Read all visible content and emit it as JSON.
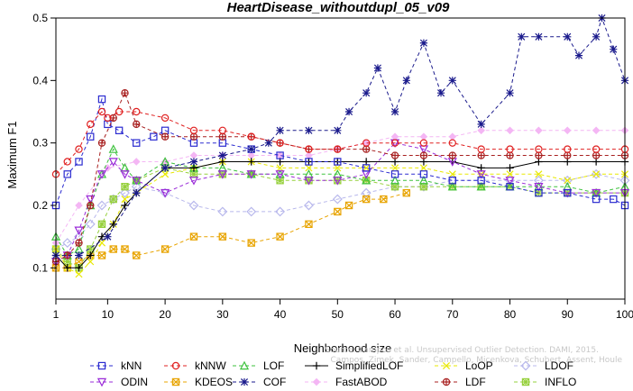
{
  "chart_data": {
    "type": "line",
    "title": "HeartDisease_withoutdupl_05_v09",
    "xlabel": "Neighborhood size",
    "ylabel": "Maximum F1",
    "xlim": [
      1,
      100
    ],
    "ylim": [
      0.05,
      0.5
    ],
    "xticks": [
      1,
      10,
      20,
      30,
      40,
      50,
      60,
      70,
      80,
      90,
      100
    ],
    "yticks": [
      0.1,
      0.2,
      0.3,
      0.4,
      0.5
    ],
    "grid": false,
    "legend_position": "bottom",
    "watermark": [
      "Source: Campos et al. Unsupervised Outlier Detection. DAMI, 2015.",
      "Campos, Zimek, Sander, Campello, Micenkova, Schubert, Assent, Houle"
    ],
    "series": [
      {
        "name": "kNN",
        "color": "#2b2bd0",
        "marker": "square",
        "dash": "4,3",
        "x": [
          1,
          3,
          5,
          7,
          9,
          10,
          12,
          15,
          18,
          20,
          25,
          30,
          35,
          40,
          45,
          50,
          55,
          60,
          65,
          70,
          75,
          80,
          85,
          90,
          95,
          98,
          100
        ],
        "y": [
          0.2,
          0.25,
          0.27,
          0.31,
          0.37,
          0.33,
          0.32,
          0.3,
          0.31,
          0.32,
          0.3,
          0.3,
          0.29,
          0.28,
          0.27,
          0.27,
          0.26,
          0.25,
          0.25,
          0.24,
          0.24,
          0.23,
          0.22,
          0.22,
          0.21,
          0.21,
          0.2
        ]
      },
      {
        "name": "kNNW",
        "color": "#e02020",
        "marker": "circle",
        "dash": "4,3",
        "x": [
          1,
          3,
          5,
          7,
          9,
          10,
          12,
          15,
          20,
          25,
          30,
          35,
          40,
          45,
          50,
          55,
          60,
          65,
          70,
          75,
          80,
          85,
          90,
          95,
          100
        ],
        "y": [
          0.25,
          0.27,
          0.29,
          0.33,
          0.35,
          0.34,
          0.35,
          0.35,
          0.34,
          0.32,
          0.32,
          0.31,
          0.3,
          0.29,
          0.29,
          0.3,
          0.3,
          0.3,
          0.3,
          0.29,
          0.29,
          0.29,
          0.29,
          0.29,
          0.29
        ]
      },
      {
        "name": "LOF",
        "color": "#3ec23e",
        "marker": "triangle",
        "dash": "4,3",
        "x": [
          1,
          3,
          5,
          7,
          9,
          11,
          13,
          15,
          20,
          25,
          30,
          35,
          40,
          45,
          50,
          55,
          60,
          65,
          70,
          75,
          80,
          85,
          90,
          95,
          100
        ],
        "y": [
          0.15,
          0.12,
          0.13,
          0.2,
          0.25,
          0.29,
          0.26,
          0.24,
          0.27,
          0.26,
          0.26,
          0.25,
          0.25,
          0.25,
          0.25,
          0.24,
          0.24,
          0.24,
          0.23,
          0.23,
          0.23,
          0.23,
          0.23,
          0.22,
          0.23
        ]
      },
      {
        "name": "SimplifiedLOF",
        "color": "#000000",
        "marker": "plus",
        "dash": "none",
        "x": [
          1,
          3,
          5,
          7,
          9,
          11,
          13,
          15,
          20,
          25,
          30,
          35,
          40,
          45,
          50,
          55,
          60,
          65,
          70,
          75,
          80,
          85,
          90,
          95,
          100
        ],
        "y": [
          0.12,
          0.1,
          0.1,
          0.12,
          0.15,
          0.17,
          0.2,
          0.22,
          0.26,
          0.26,
          0.27,
          0.27,
          0.27,
          0.27,
          0.27,
          0.27,
          0.27,
          0.27,
          0.27,
          0.26,
          0.26,
          0.27,
          0.27,
          0.27,
          0.27
        ]
      },
      {
        "name": "LoOP",
        "color": "#e8e800",
        "marker": "x",
        "dash": "4,3",
        "x": [
          1,
          3,
          5,
          7,
          9,
          11,
          13,
          15,
          20,
          25,
          30,
          35,
          40,
          45,
          50,
          55,
          60,
          65,
          70,
          75,
          80,
          85,
          90,
          95,
          100
        ],
        "y": [
          0.13,
          0.1,
          0.09,
          0.11,
          0.14,
          0.17,
          0.21,
          0.22,
          0.25,
          0.26,
          0.27,
          0.27,
          0.26,
          0.26,
          0.26,
          0.26,
          0.26,
          0.26,
          0.25,
          0.25,
          0.25,
          0.25,
          0.24,
          0.25,
          0.25
        ]
      },
      {
        "name": "LDOF",
        "color": "#b8b8ec",
        "marker": "diamond",
        "dash": "4,3",
        "x": [
          1,
          3,
          5,
          7,
          9,
          11,
          13,
          15,
          20,
          25,
          30,
          35,
          40,
          45,
          50,
          55,
          60,
          65,
          70,
          75,
          80,
          85,
          90,
          95,
          100
        ],
        "y": [
          0.13,
          0.14,
          0.15,
          0.17,
          0.2,
          0.21,
          0.22,
          0.23,
          0.22,
          0.2,
          0.19,
          0.19,
          0.19,
          0.2,
          0.21,
          0.22,
          0.23,
          0.23,
          0.24,
          0.24,
          0.24,
          0.24,
          0.24,
          0.25,
          0.24
        ]
      },
      {
        "name": "ODIN",
        "color": "#9a2bd8",
        "marker": "triangle-down",
        "dash": "4,3",
        "x": [
          1,
          3,
          5,
          7,
          9,
          11,
          13,
          15,
          20,
          25,
          30,
          35,
          40,
          45,
          50,
          55,
          60,
          65,
          70,
          75,
          80,
          85,
          90,
          95,
          100
        ],
        "y": [
          0.11,
          0.12,
          0.16,
          0.21,
          0.25,
          0.27,
          0.25,
          0.24,
          0.22,
          0.24,
          0.25,
          0.25,
          0.25,
          0.24,
          0.24,
          0.25,
          0.3,
          0.29,
          0.27,
          0.25,
          0.24,
          0.23,
          0.22,
          0.22,
          0.22
        ]
      },
      {
        "name": "KDEOS",
        "color": "#e8a400",
        "marker": "square-x",
        "dash": "4,3",
        "x": [
          1,
          3,
          5,
          7,
          9,
          11,
          13,
          15,
          20,
          25,
          30,
          35,
          40,
          45,
          50,
          52,
          55,
          58,
          62
        ],
        "y": [
          0.1,
          0.1,
          0.11,
          0.12,
          0.12,
          0.13,
          0.13,
          0.12,
          0.13,
          0.15,
          0.15,
          0.14,
          0.15,
          0.17,
          0.19,
          0.2,
          0.21,
          0.21,
          0.22
        ]
      },
      {
        "name": "COF",
        "color": "#1a1a8c",
        "marker": "star",
        "dash": "4,3",
        "x": [
          1,
          5,
          10,
          15,
          20,
          25,
          30,
          35,
          38,
          40,
          45,
          50,
          52,
          55,
          57,
          60,
          62,
          65,
          68,
          70,
          75,
          80,
          82,
          85,
          90,
          92,
          95,
          96,
          98,
          100
        ],
        "y": [
          0.12,
          0.12,
          0.15,
          0.22,
          0.26,
          0.27,
          0.28,
          0.29,
          0.3,
          0.32,
          0.32,
          0.32,
          0.35,
          0.38,
          0.42,
          0.35,
          0.4,
          0.46,
          0.38,
          0.4,
          0.33,
          0.38,
          0.47,
          0.47,
          0.47,
          0.44,
          0.47,
          0.5,
          0.45,
          0.4
        ]
      },
      {
        "name": "FastABOD",
        "color": "#f4b6f4",
        "marker": "diamond-filled",
        "dash": "4,3",
        "x": [
          1,
          5,
          10,
          15,
          20,
          25,
          30,
          35,
          40,
          45,
          50,
          55,
          60,
          65,
          70,
          75,
          80,
          85,
          90,
          95,
          100
        ],
        "y": [
          0.14,
          0.2,
          0.26,
          0.27,
          0.27,
          0.28,
          0.28,
          0.28,
          0.28,
          0.28,
          0.29,
          0.3,
          0.31,
          0.31,
          0.31,
          0.32,
          0.32,
          0.32,
          0.32,
          0.32,
          0.32
        ]
      },
      {
        "name": "LDF",
        "color": "#a82020",
        "marker": "circle-plus",
        "dash": "4,3",
        "x": [
          1,
          3,
          5,
          7,
          9,
          11,
          13,
          15,
          20,
          25,
          30,
          35,
          40,
          45,
          50,
          55,
          60,
          65,
          70,
          75,
          80,
          85,
          90,
          95,
          100
        ],
        "y": [
          0.11,
          0.12,
          0.14,
          0.2,
          0.3,
          0.34,
          0.38,
          0.33,
          0.31,
          0.31,
          0.31,
          0.31,
          0.3,
          0.29,
          0.29,
          0.29,
          0.28,
          0.28,
          0.28,
          0.28,
          0.28,
          0.28,
          0.28,
          0.28,
          0.28
        ]
      },
      {
        "name": "INFLO",
        "color": "#96d03c",
        "marker": "square-star",
        "dash": "4,3",
        "x": [
          1,
          3,
          5,
          7,
          9,
          11,
          13,
          15,
          20,
          25,
          30,
          35,
          40,
          45,
          50,
          55,
          60,
          65,
          70,
          75,
          80,
          85,
          90,
          95,
          100
        ],
        "y": [
          0.13,
          0.11,
          0.1,
          0.13,
          0.17,
          0.21,
          0.23,
          0.24,
          0.26,
          0.25,
          0.25,
          0.25,
          0.24,
          0.24,
          0.24,
          0.24,
          0.23,
          0.23,
          0.23,
          0.23,
          0.23,
          0.22,
          0.22,
          0.22,
          0.22
        ]
      }
    ]
  }
}
